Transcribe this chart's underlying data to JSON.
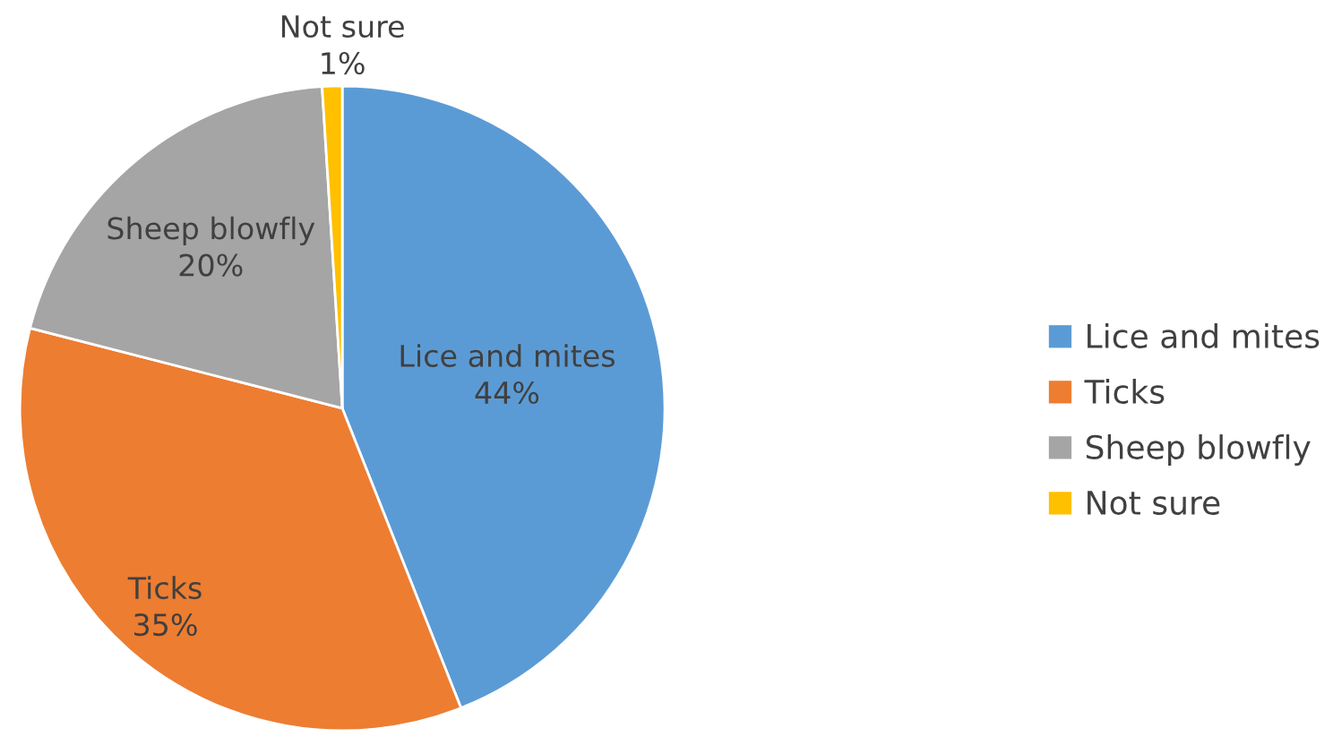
{
  "chart_data": {
    "type": "pie",
    "categories": [
      "Lice and mites",
      "Ticks",
      "Sheep blowfly",
      "Not sure"
    ],
    "values": [
      44,
      35,
      20,
      1
    ],
    "value_labels": [
      "44%",
      "35%",
      "20%",
      "1%"
    ],
    "colors": [
      "#5b9bd5",
      "#ed7d31",
      "#a5a5a5",
      "#ffc000"
    ],
    "legend": "right"
  }
}
